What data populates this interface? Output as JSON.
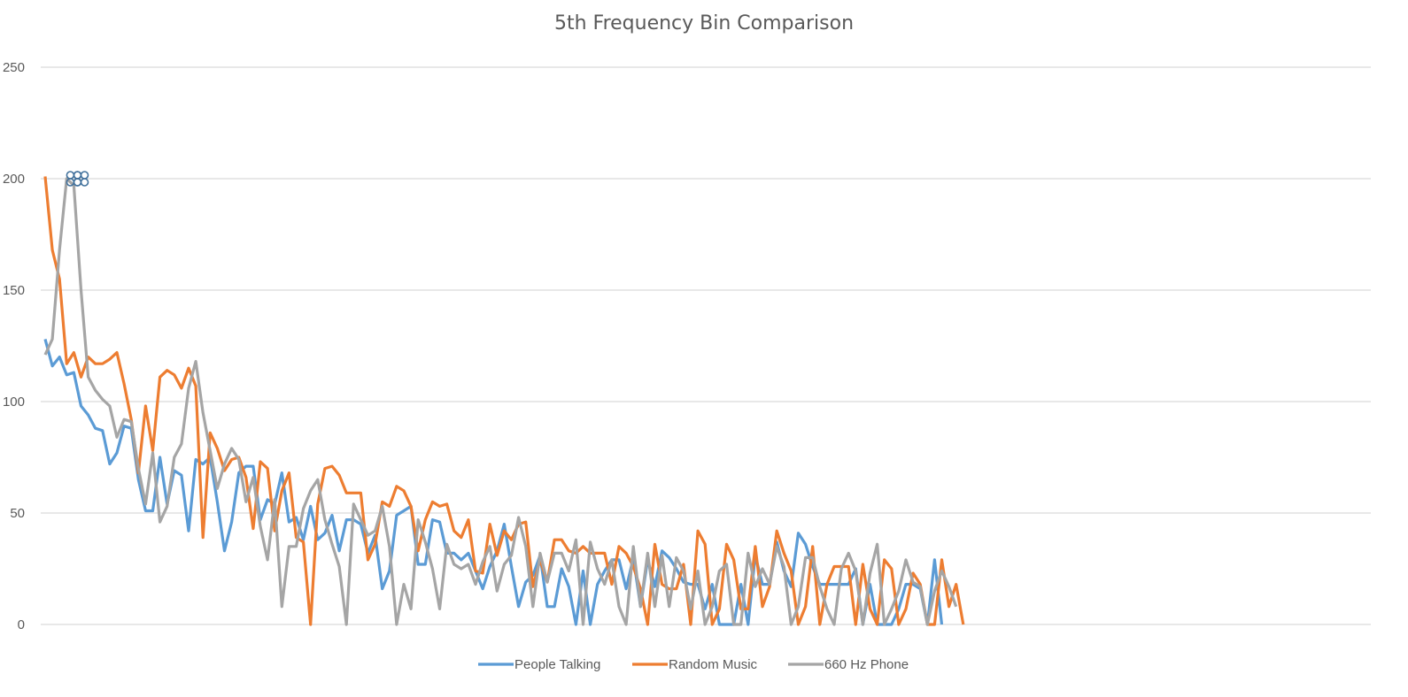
{
  "chart_data": {
    "type": "line",
    "title": "5th Frequency Bin Comparison",
    "xlabel": "",
    "ylabel": "",
    "ylim": [
      0,
      250
    ],
    "yticks": [
      0,
      50,
      100,
      150,
      200,
      250
    ],
    "grid": true,
    "legend_position": "bottom",
    "series": [
      {
        "name": "People Talking",
        "color": "#5B9BD5",
        "values": [
          128,
          116,
          120,
          112,
          113,
          98,
          94,
          88,
          87,
          72,
          77,
          89,
          88,
          65,
          51,
          51,
          75,
          54,
          69,
          67,
          42,
          74,
          72,
          75,
          55,
          33,
          46,
          68,
          71,
          71,
          47,
          56,
          54,
          68,
          46,
          48,
          38,
          53,
          38,
          41,
          49,
          33,
          47,
          47,
          45,
          32,
          40,
          16,
          24,
          49,
          51,
          53,
          27,
          27,
          47,
          46,
          32,
          32,
          29,
          32,
          24,
          16,
          26,
          33,
          45,
          26,
          8,
          19,
          22,
          31,
          8,
          8,
          25,
          17,
          0,
          24,
          0,
          18,
          24,
          29,
          29,
          16,
          30,
          8,
          29,
          17,
          33,
          30,
          25,
          19,
          18,
          18,
          7,
          18,
          0,
          0,
          0,
          18,
          0,
          31,
          18,
          18,
          37,
          24,
          17,
          41,
          36,
          26,
          18,
          18,
          18,
          18,
          18,
          25,
          0,
          18,
          0,
          0,
          0,
          7,
          18,
          18,
          16,
          0,
          29,
          0
        ],
        "markers": [
          [
            4,
            200
          ],
          [
            5,
            200
          ]
        ]
      },
      {
        "name": "Random Music",
        "color": "#ED7D31",
        "values": [
          201,
          168,
          155,
          117,
          122,
          111,
          120,
          117,
          117,
          119,
          122,
          108,
          92,
          68,
          98,
          78,
          111,
          114,
          112,
          106,
          115,
          107,
          39,
          86,
          79,
          69,
          74,
          75,
          66,
          43,
          73,
          70,
          42,
          60,
          68,
          39,
          37,
          0,
          54,
          70,
          71,
          67,
          59,
          59,
          59,
          29,
          36,
          55,
          53,
          62,
          60,
          53,
          33,
          47,
          55,
          53,
          54,
          42,
          39,
          47,
          24,
          23,
          45,
          31,
          42,
          38,
          45,
          46,
          17,
          29,
          19,
          38,
          38,
          33,
          32,
          35,
          32,
          32,
          32,
          18,
          35,
          32,
          26,
          16,
          0,
          36,
          18,
          16,
          16,
          27,
          0,
          42,
          36,
          0,
          7,
          36,
          29,
          7,
          7,
          35,
          8,
          17,
          42,
          32,
          24,
          0,
          8,
          35,
          0,
          18,
          26,
          26,
          26,
          0,
          27,
          7,
          0,
          29,
          25,
          0,
          7,
          23,
          18,
          0,
          0,
          29,
          8,
          18,
          0
        ]
      },
      {
        "name": "660 Hz Phone",
        "color": "#A5A5A5",
        "values": [
          121,
          128,
          168,
          200,
          197,
          150,
          111,
          105,
          101,
          98,
          84,
          92,
          91,
          70,
          54,
          77,
          46,
          53,
          75,
          81,
          106,
          118,
          95,
          78,
          61,
          72,
          79,
          74,
          55,
          66,
          44,
          29,
          56,
          8,
          35,
          35,
          52,
          60,
          65,
          47,
          36,
          26,
          0,
          54,
          47,
          40,
          42,
          53,
          35,
          0,
          18,
          7,
          47,
          37,
          25,
          7,
          36,
          27,
          25,
          27,
          18,
          28,
          35,
          15,
          27,
          31,
          48,
          35,
          8,
          32,
          19,
          32,
          32,
          24,
          38,
          0,
          37,
          25,
          18,
          29,
          8,
          0,
          35,
          8,
          32,
          8,
          31,
          8,
          30,
          24,
          7,
          24,
          0,
          8,
          24,
          27,
          0,
          0,
          32,
          17,
          25,
          18,
          35,
          26,
          0,
          8,
          30,
          30,
          17,
          7,
          0,
          25,
          32,
          24,
          0,
          23,
          36,
          0,
          7,
          15,
          29,
          19,
          17,
          0,
          15,
          24,
          17,
          8
        ]
      }
    ]
  }
}
